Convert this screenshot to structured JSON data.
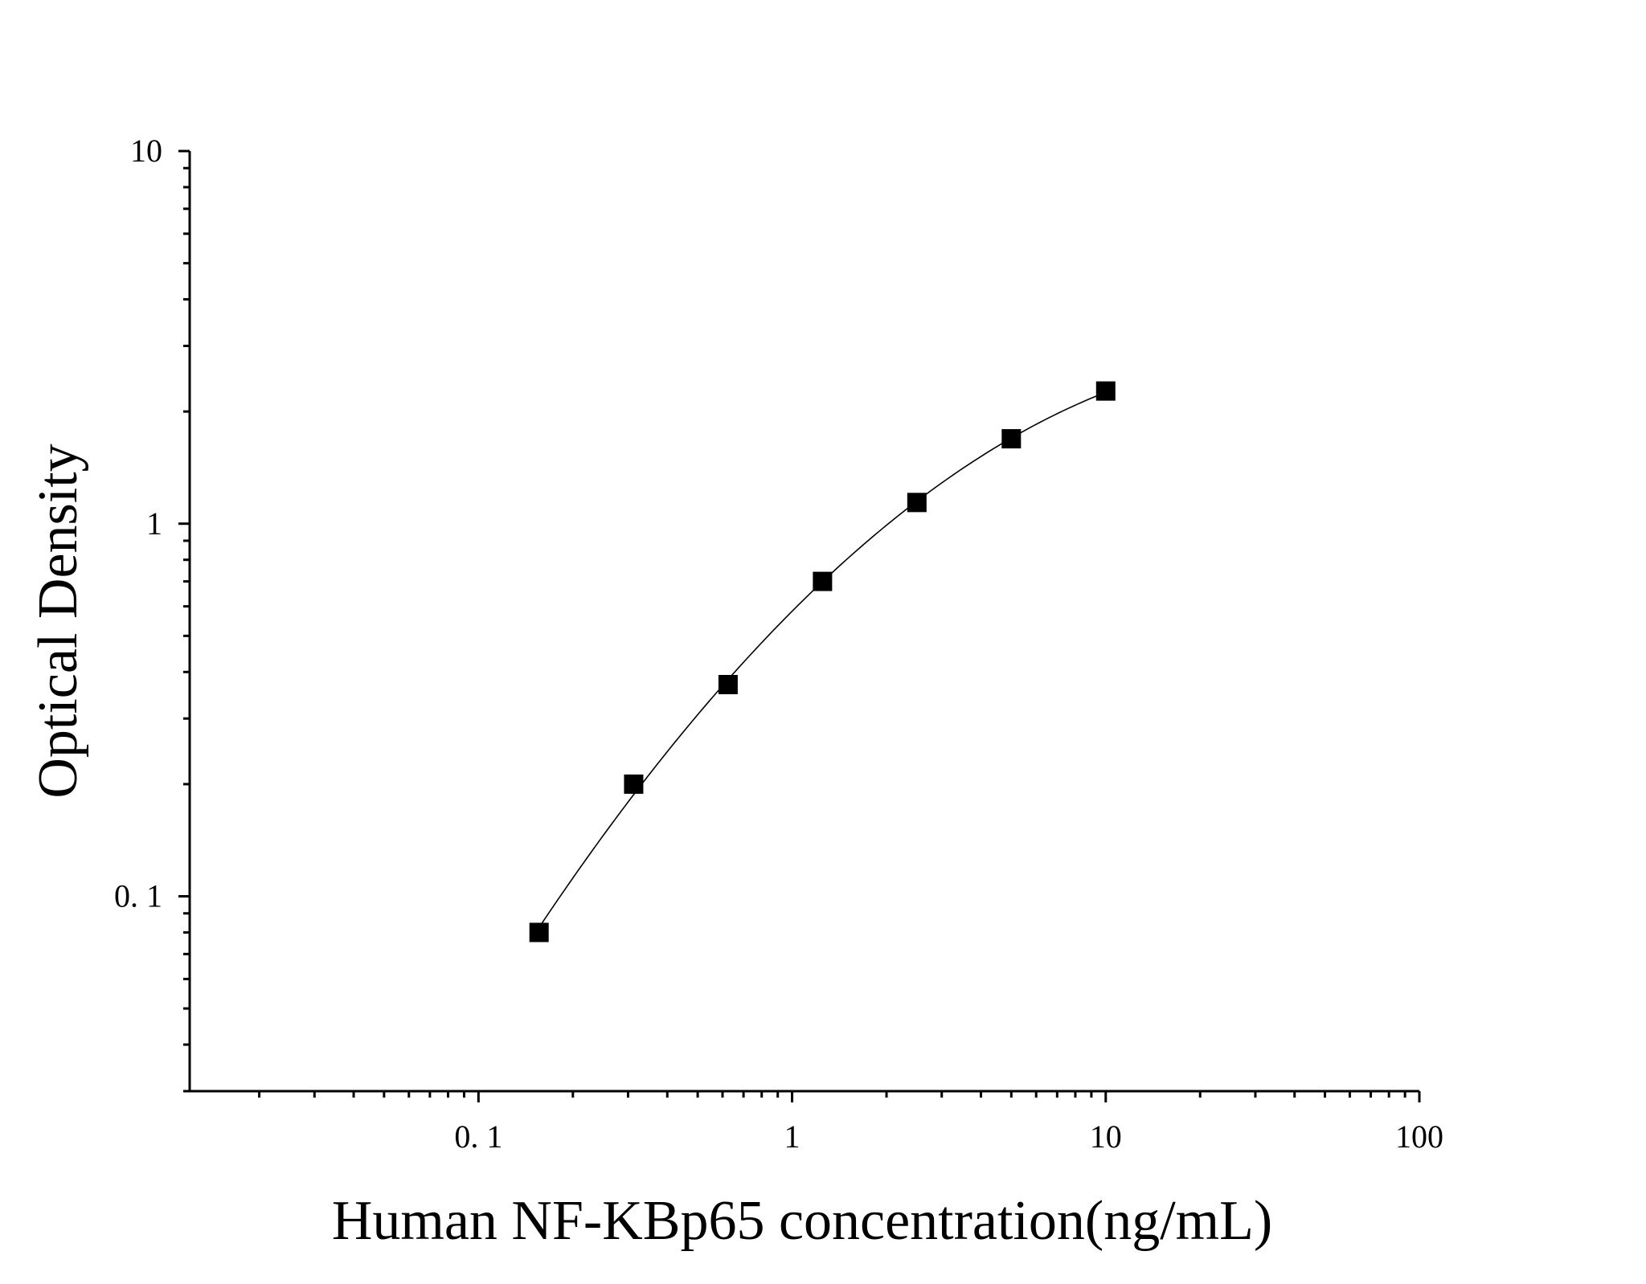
{
  "chart_data": {
    "type": "scatter",
    "title": "",
    "xlabel": "Human NF-KBp65 concentration(ng/mL)",
    "ylabel": "Optical Density",
    "x_scale": "log",
    "y_scale": "log",
    "xlim": [
      0.012,
      100
    ],
    "ylim": [
      0.03,
      10
    ],
    "x_ticks": [
      {
        "value": 0.1,
        "label": "0. 1"
      },
      {
        "value": 1,
        "label": "1"
      },
      {
        "value": 10,
        "label": "10"
      },
      {
        "value": 100,
        "label": "100"
      }
    ],
    "y_ticks": [
      {
        "value": 0.1,
        "label": "0. 1"
      },
      {
        "value": 1,
        "label": "1"
      },
      {
        "value": 10,
        "label": "10"
      }
    ],
    "grid": false,
    "legend": "none",
    "series": [
      {
        "marker": "square",
        "color": "#000000",
        "x": [
          0.156,
          0.3125,
          0.625,
          1.25,
          2.5,
          5,
          10
        ],
        "y": [
          0.08,
          0.2,
          0.37,
          0.7,
          1.14,
          1.69,
          2.27
        ],
        "fit_curve": true
      }
    ]
  }
}
